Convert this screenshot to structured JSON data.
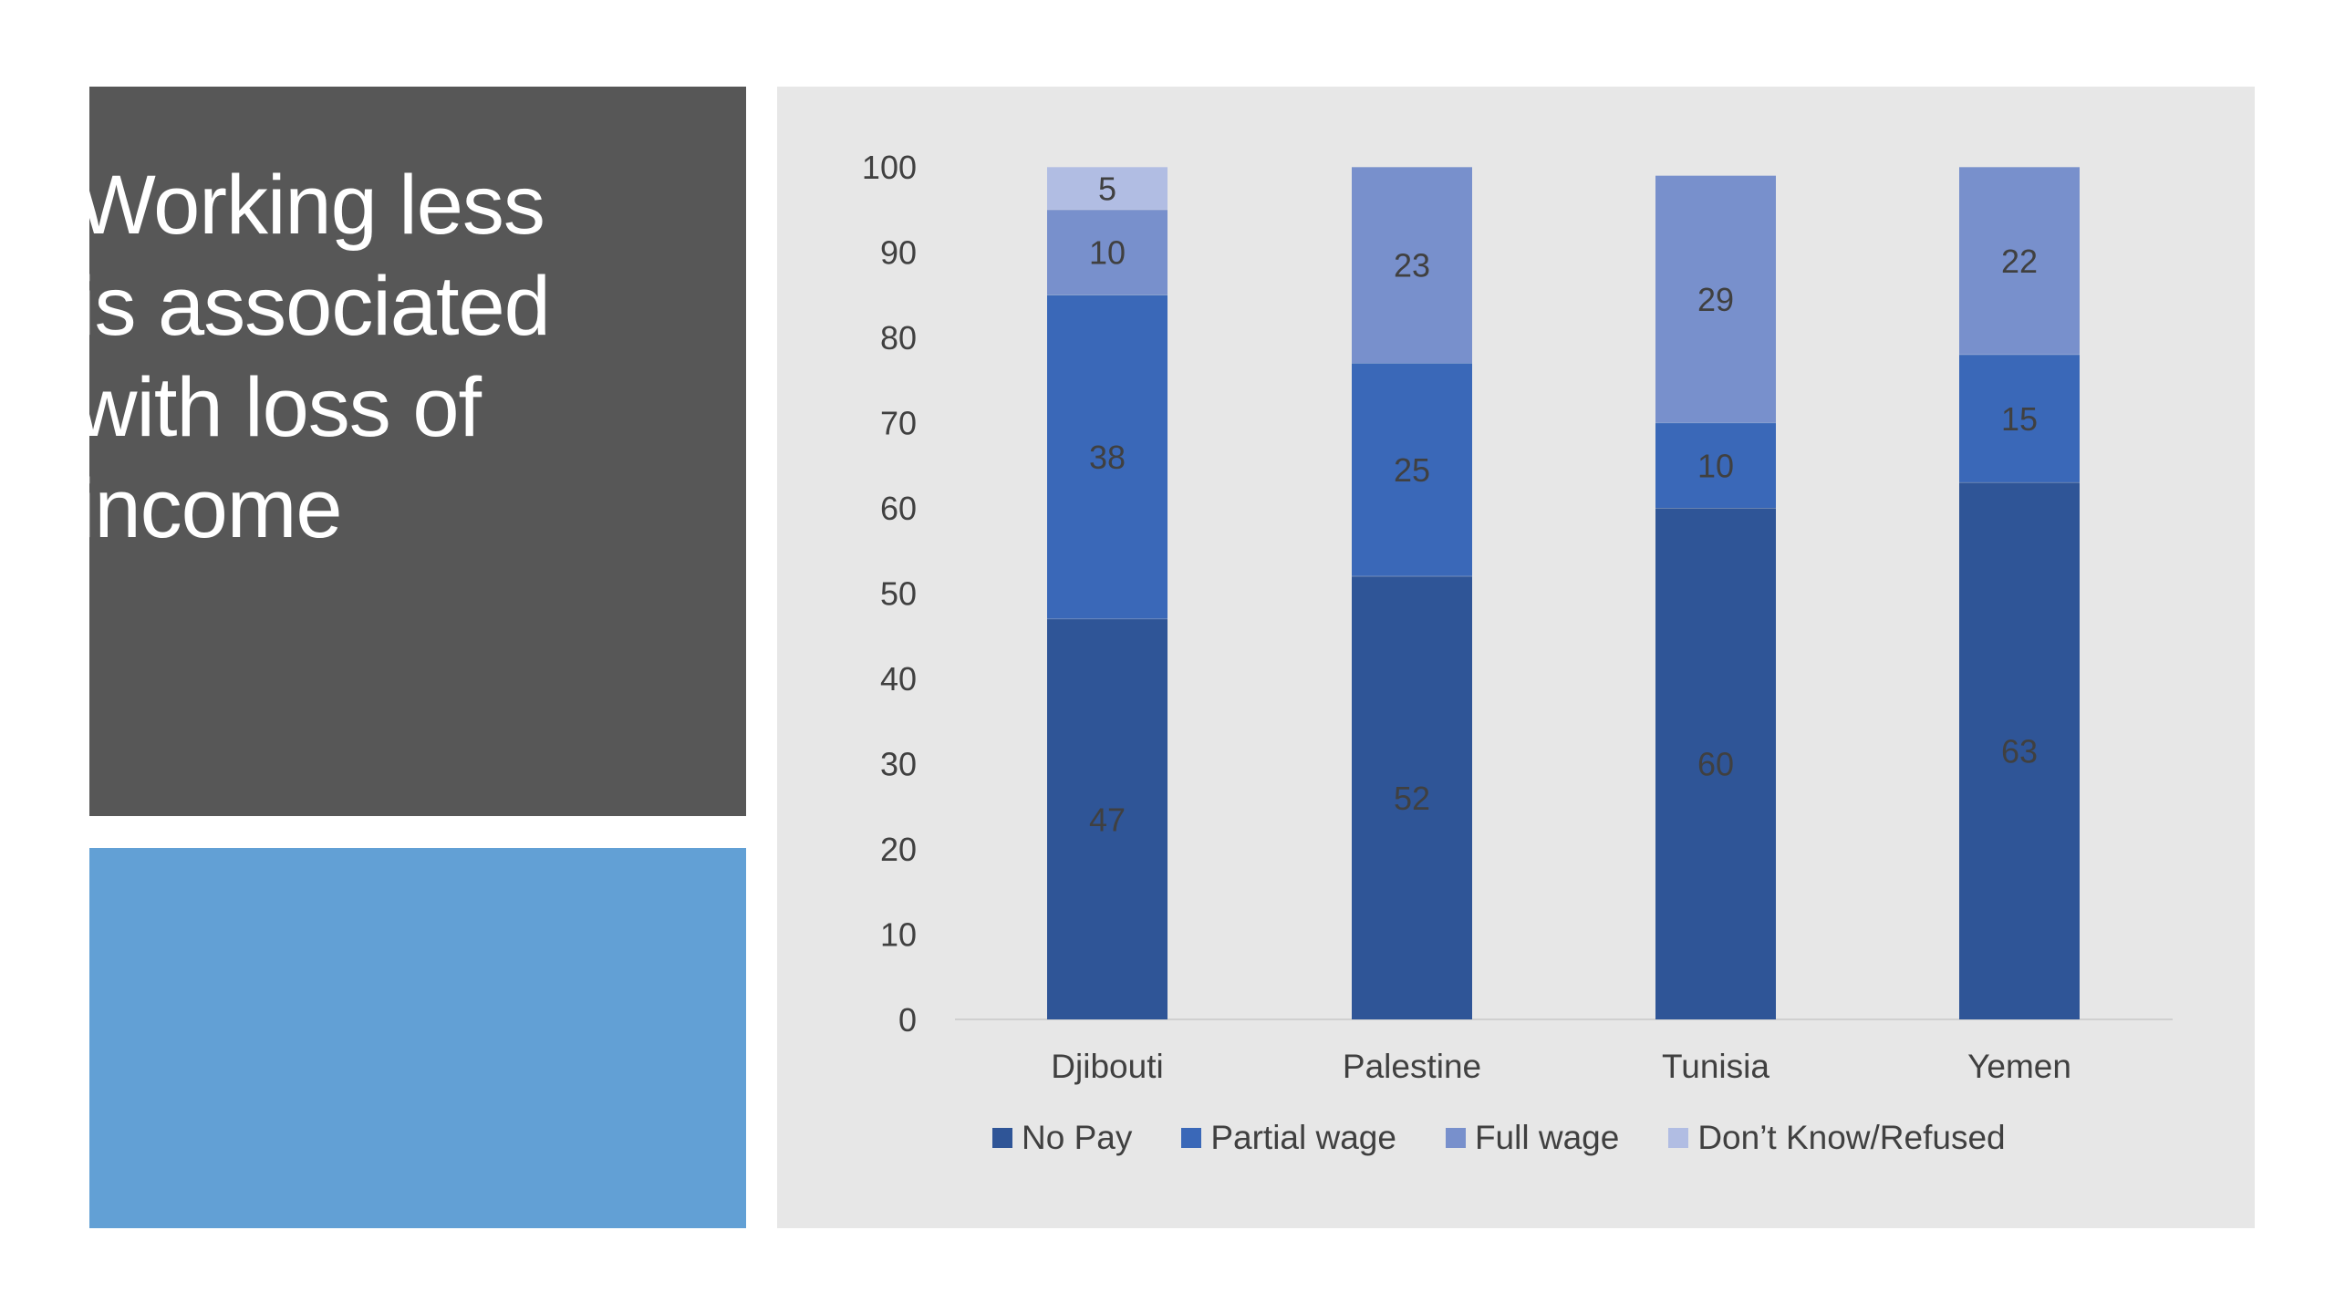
{
  "slide": {
    "title": "Working less is associated with loss of income"
  },
  "colors": {
    "no_pay": "#2f5597",
    "partial_wage": "#3a68b8",
    "full_wage": "#7890cc",
    "dont_know": "#b1bde3",
    "dark_panel": "#575757",
    "blue_panel": "#62a0d5",
    "chart_bg": "#e7e7e7"
  },
  "chart_data": {
    "type": "bar",
    "stacked": true,
    "categories": [
      "Djibouti",
      "Palestine",
      "Tunisia",
      "Yemen"
    ],
    "series": [
      {
        "name": "No Pay",
        "values": [
          47,
          52,
          60,
          63
        ],
        "color": "#2f5597"
      },
      {
        "name": "Partial wage",
        "values": [
          38,
          25,
          10,
          15
        ],
        "color": "#3a68b8"
      },
      {
        "name": "Full wage",
        "values": [
          10,
          23,
          29,
          22
        ],
        "color": "#7890cc"
      },
      {
        "name": "Don’t Know/Refused",
        "values": [
          5,
          0,
          0,
          0
        ],
        "color": "#b1bde3"
      }
    ],
    "yticks": [
      0,
      10,
      20,
      30,
      40,
      50,
      60,
      70,
      80,
      90,
      100
    ],
    "ylim": [
      0,
      100
    ],
    "grid": false,
    "legend_position": "bottom"
  }
}
